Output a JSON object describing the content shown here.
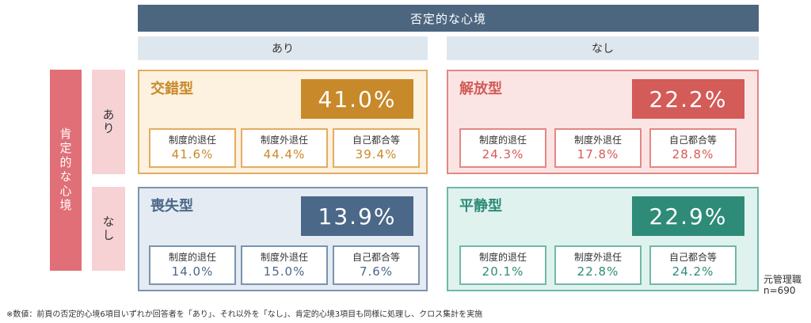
{
  "header": {
    "title": "否定的な心境"
  },
  "columns": [
    {
      "label": "あり"
    },
    {
      "label": "なし"
    }
  ],
  "side": {
    "main_label": "肯定的な心境",
    "rows": [
      {
        "label": "あり"
      },
      {
        "label": "なし"
      }
    ]
  },
  "sub_labels": {
    "s1": "制度的退任",
    "s2": "制度外退任",
    "s3": "自己都合等"
  },
  "cards": [
    {
      "title": "交錯型",
      "pct": "41.0%",
      "accent": "#c8892a",
      "bg": "#fdf1df",
      "border": "#e2ad63",
      "sub1": "41.6%",
      "sub2": "44.4%",
      "sub3": "39.4%"
    },
    {
      "title": "解放型",
      "pct": "22.2%",
      "accent": "#d35b58",
      "bg": "#fbe5e4",
      "border": "#e38785",
      "sub1": "24.3%",
      "sub2": "17.8%",
      "sub3": "28.8%"
    },
    {
      "title": "喪失型",
      "pct": "13.9%",
      "accent": "#4b6888",
      "bg": "#e4ebf3",
      "border": "#7c93ad",
      "sub1": "14.0%",
      "sub2": "15.0%",
      "sub3": "7.6%"
    },
    {
      "title": "平静型",
      "pct": "22.9%",
      "accent": "#2e8b78",
      "bg": "#e0f2ee",
      "border": "#6fb8a8",
      "sub1": "20.1%",
      "sub2": "22.8%",
      "sub3": "24.2%"
    }
  ],
  "meta": {
    "group": "元管理職",
    "n": "n=690"
  },
  "footnote": "※数値：前頁の否定的心境6項目いずれか回答者を「あり」、それ以外を「なし」、肯定的心境3項目も同様に処理し、クロス集計を実施"
}
